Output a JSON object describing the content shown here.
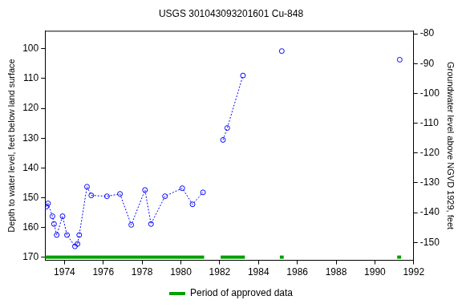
{
  "chart_data": {
    "type": "line",
    "title": "USGS 301043093201601 Cu-848",
    "y_label": "Depth to water level, feet below land surface",
    "y2_label": "Groundwater level above NGVD 1929, feet",
    "xlim": [
      1973,
      1992
    ],
    "xticks": [
      1974,
      1976,
      1978,
      1980,
      1982,
      1984,
      1986,
      1988,
      1990,
      1992
    ],
    "ylim": [
      171,
      94
    ],
    "yticks": [
      100,
      110,
      120,
      130,
      140,
      150,
      160,
      170
    ],
    "y2lim": [
      -156,
      -79
    ],
    "y2ticks": [
      -80,
      -90,
      -100,
      -110,
      -120,
      -130,
      -140,
      -150
    ],
    "grid": false,
    "legend": "bottom",
    "series": [
      {
        "color": "#0000ff",
        "marker": "circle",
        "line_style": "dotted",
        "x": [
          1973.06,
          1973.15,
          1973.38,
          1973.46,
          1973.6,
          1973.9,
          1974.13,
          1974.54,
          1974.67,
          1974.76,
          1975.16,
          1975.38,
          1976.19,
          1976.86,
          1977.44,
          1978.15,
          1978.46,
          1979.18,
          1980.07,
          1980.6,
          1981.14
        ],
        "values": [
          153,
          151.9,
          156.2,
          158.8,
          162.5,
          156.2,
          162.5,
          166.3,
          165.5,
          162.5,
          146.3,
          149.2,
          149.5,
          148.7,
          159.1,
          147.4,
          158.8,
          149.5,
          146.8,
          152.2,
          148.2
        ]
      },
      {
        "color": "#0000ff",
        "marker": "circle",
        "line_style": "dotted",
        "x": [
          1982.17,
          1982.39,
          1983.2
        ],
        "values": [
          130.6,
          126.6,
          109
        ]
      },
      {
        "color": "#0000ff",
        "marker": "circle",
        "line_style": "dotted",
        "x": [
          1985.2
        ],
        "values": [
          100.8
        ]
      },
      {
        "color": "#0000ff",
        "marker": "circle",
        "line_style": "dotted",
        "x": [
          1991.28
        ],
        "values": [
          103.7
        ]
      }
    ],
    "approved_periods": {
      "name": "Period of approved data",
      "color": "#00a000",
      "ranges": [
        [
          1973,
          1981.2
        ],
        [
          1982.05,
          1983.3
        ],
        [
          1985.1,
          1985.3
        ],
        [
          1991.15,
          1991.35
        ]
      ]
    }
  }
}
